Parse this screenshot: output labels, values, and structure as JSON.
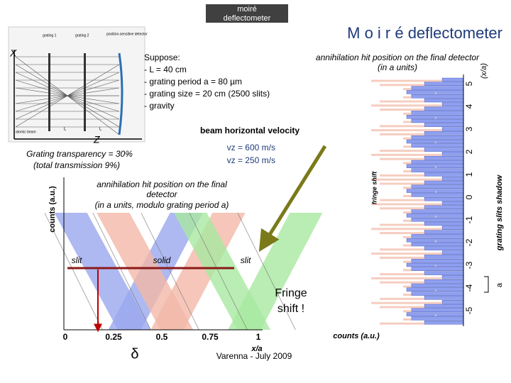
{
  "slide": {
    "tab": [
      "moiré",
      "deflectometer"
    ],
    "title": "M o i r é  deflectometer",
    "diagram": {
      "axis_x": "X",
      "axis_z": "Z",
      "labels": [
        "grating 1",
        "grating 2",
        "position-sensitive detector",
        "atomic beam",
        "L",
        "L"
      ]
    },
    "suppose": [
      "Suppose:",
      "- L = 40 cm",
      "- grating period a = 80 µm",
      "- grating size = 20 cm (2500 slits)",
      "- gravity"
    ],
    "transparency": [
      "Grating transparency = 30%",
      "(total transmission 9%)"
    ],
    "velocity": {
      "title": "beam horizontal velocity",
      "lines": [
        "vz =  600 m/s",
        "vz =  250 m/s"
      ]
    },
    "left_plot": {
      "title": [
        "annihilation hit position on the final",
        "detector",
        "(in a units, modulo grating period a)"
      ],
      "y_label": "counts (a.u.)",
      "regions": [
        "slit",
        "solid",
        "slit"
      ],
      "x_ticks": [
        "0",
        "0.25",
        "0.5",
        "0.75",
        "1"
      ],
      "x_label": "x/a",
      "delta": "δ",
      "fringe": [
        "Fringe",
        "shift !"
      ]
    },
    "right_plot": {
      "title": [
        "annihilation hit position on the final detector",
        "(in a units)"
      ],
      "axis_label": "(x/a)",
      "ticks": [
        "5",
        "4",
        "3",
        "2",
        "1",
        "0",
        "-1",
        "-2",
        "-3",
        "-4",
        "-5"
      ],
      "fringe_label": "fringe shift",
      "shadow_label": "grating slits shadow",
      "x_label": "counts (a.u.)",
      "period": "a"
    },
    "footer": "Varenna - July 2009"
  }
}
